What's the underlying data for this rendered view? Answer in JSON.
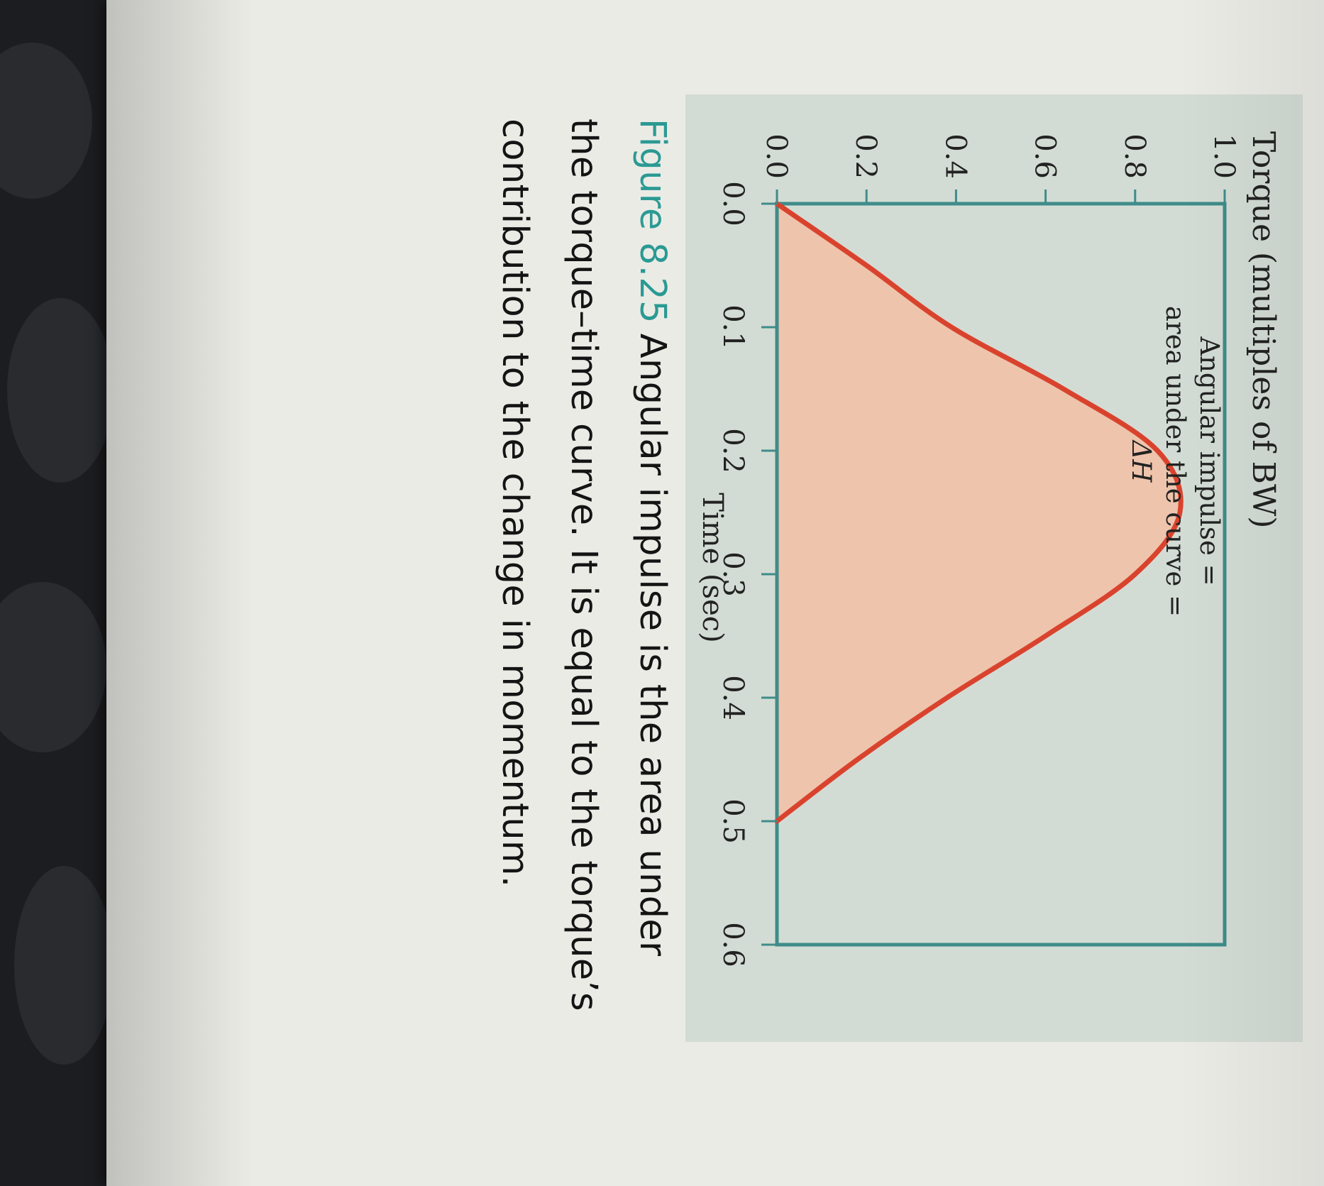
{
  "colors": {
    "panel": "#d3dcd4",
    "frame": "#3f8c8a",
    "curve": "#d9432e",
    "fill": "#eec4ac",
    "caption_accent": "#2a9a93"
  },
  "chart_data": {
    "type": "area",
    "ylabel": "Torque (multiples of BW)",
    "xlabel": "Time (sec)",
    "xlim": [
      0,
      0.6
    ],
    "ylim": [
      0,
      1.0
    ],
    "x_ticks": [
      "0.0",
      "0.1",
      "0.2",
      "0.3",
      "0.4",
      "0.5",
      "0.6"
    ],
    "y_ticks": [
      "0.0",
      "0.2",
      "0.4",
      "0.6",
      "0.8",
      "1.0"
    ],
    "grid": false,
    "x": [
      0.0,
      0.05,
      0.1,
      0.15,
      0.2,
      0.25,
      0.3,
      0.35,
      0.4,
      0.45,
      0.5
    ],
    "series": [
      {
        "values": [
          0.0,
          0.2,
          0.39,
          0.64,
          0.85,
          0.9,
          0.8,
          0.6,
          0.38,
          0.18,
          0.0
        ]
      }
    ],
    "annotation": [
      "Angular impulse =",
      "area under the curve =",
      "ΔH"
    ]
  },
  "caption": {
    "figure_number": "Figure 8.25",
    "lines": [
      "Angular impulse is the area under",
      "the torque–time curve. It is equal to the torque’s",
      "contribution to the change in momentum."
    ]
  }
}
